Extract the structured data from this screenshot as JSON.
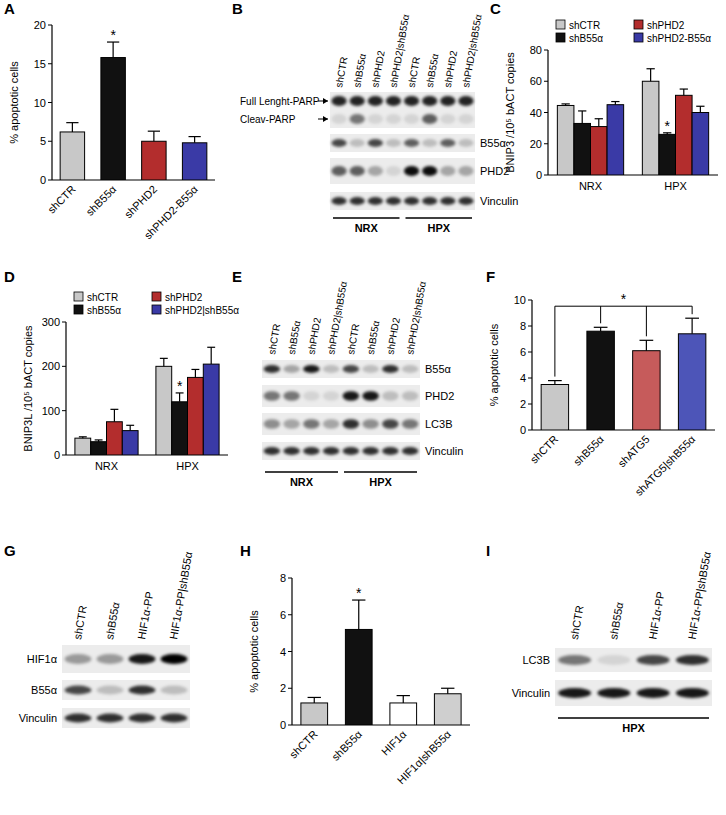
{
  "panel_labels": [
    "A",
    "B",
    "C",
    "D",
    "E",
    "F",
    "G",
    "H",
    "I"
  ],
  "chart_data": [
    {
      "type": "bar",
      "y_label": "% apoptotic cells",
      "categories": [
        "shCTR",
        "shB55α",
        "shPHD2",
        "shPHD2-B55α"
      ],
      "values": [
        6.2,
        15.8,
        5.0,
        4.8
      ],
      "errors": [
        1.2,
        2.0,
        1.3,
        0.8
      ],
      "colors": [
        "#c8c8c8",
        "#111111",
        "#b32d2d",
        "#3a3aa6"
      ],
      "ylim": [
        0,
        20
      ],
      "yticks": [
        0,
        5,
        10,
        15,
        20
      ],
      "annotations": [
        {
          "text": "*",
          "index": 1
        }
      ]
    },
    {
      "type": "bar",
      "y_label": "BNIP3 /10⁵ bACT copies",
      "categories": [
        "NRX",
        "HPX"
      ],
      "series": [
        {
          "name": "shCTR",
          "color": "#c8c8c8",
          "values": [
            44.5,
            60
          ],
          "errors": [
            1,
            8
          ]
        },
        {
          "name": "shB55α",
          "color": "#111111",
          "values": [
            33,
            26
          ],
          "errors": [
            8,
            1
          ]
        },
        {
          "name": "shPHD2",
          "color": "#b32d2d",
          "values": [
            31,
            51
          ],
          "errors": [
            5,
            4
          ]
        },
        {
          "name": "shPHD2-B55α",
          "color": "#3a3aa6",
          "values": [
            45,
            40
          ],
          "errors": [
            2,
            4
          ]
        }
      ],
      "ylim": [
        0,
        80
      ],
      "yticks": [
        0,
        20,
        40,
        60,
        80
      ],
      "legend": "top",
      "annotations": [
        {
          "text": "*",
          "series": 1,
          "index": 1
        }
      ]
    },
    {
      "type": "bar",
      "y_label": "BNIP3L /10⁵ bACT copies",
      "categories": [
        "NRX",
        "HPX"
      ],
      "series": [
        {
          "name": "shCTR",
          "color": "#c8c8c8",
          "values": [
            38,
            200
          ],
          "errors": [
            3,
            18
          ]
        },
        {
          "name": "shB55α",
          "color": "#111111",
          "values": [
            30,
            120
          ],
          "errors": [
            4,
            20
          ]
        },
        {
          "name": "shPHD2",
          "color": "#b32d2d",
          "values": [
            75,
            175
          ],
          "errors": [
            28,
            18
          ]
        },
        {
          "name": "shPHD2|shB55α",
          "color": "#3a3aa6",
          "values": [
            55,
            205
          ],
          "errors": [
            12,
            38
          ]
        }
      ],
      "ylim": [
        0,
        300
      ],
      "yticks": [
        0,
        100,
        200,
        300
      ],
      "legend": "top",
      "annotations": [
        {
          "text": "*",
          "series": 1,
          "index": 1
        }
      ]
    },
    {
      "type": "bar",
      "y_label": "% apoptotic cells",
      "categories": [
        "shCTR",
        "shB55α",
        "shATG5",
        "shATG5|shB55α"
      ],
      "values": [
        3.5,
        7.6,
        6.1,
        7.4
      ],
      "errors": [
        0.3,
        0.3,
        0.8,
        1.2
      ],
      "colors": [
        "#c8c8c8",
        "#111111",
        "#c65b5b",
        "#4d55b8"
      ],
      "ylim": [
        0,
        10
      ],
      "yticks": [
        0,
        2,
        4,
        6,
        8,
        10
      ],
      "annotations": [
        {
          "text": "*",
          "bracket": [
            0,
            1,
            2,
            3
          ]
        }
      ]
    },
    {
      "type": "bar",
      "y_label": "% apoptotic cells",
      "categories": [
        "shCTR",
        "shB55α",
        "HIF1α",
        "HIF1α|shB55α"
      ],
      "values": [
        1.2,
        5.2,
        1.2,
        1.7
      ],
      "errors": [
        0.3,
        1.6,
        0.4,
        0.3
      ],
      "colors": [
        "#c8c8c8",
        "#111111",
        "#ffffff",
        "#cfcfcf"
      ],
      "ylim": [
        0,
        8
      ],
      "yticks": [
        0,
        2,
        4,
        6,
        8
      ],
      "annotations": [
        {
          "text": "*",
          "index": 1
        }
      ]
    }
  ],
  "blots": [
    {
      "lanes": [
        "shCTR",
        "shB55α",
        "shPHD2",
        "shPHD2|shB55α",
        "shCTR",
        "shB55α",
        "shPHD2",
        "shPHD2|shB55α"
      ],
      "rows": [
        {
          "arrows": [
            "Full Lenght-PARP",
            "Cleav-PARP"
          ]
        },
        {
          "label": "B55α"
        },
        {
          "label": "PHD2"
        },
        {
          "label": "Vinculin"
        }
      ],
      "groups": [
        "NRX",
        "HPX"
      ]
    },
    {
      "lanes": [
        "shCTR",
        "shB55α",
        "shPHD2",
        "shPHD2|shB55α",
        "shCTR",
        "shB55α",
        "shPHD2",
        "shPHD2|shB55α"
      ],
      "rows": [
        {
          "label": "B55α"
        },
        {
          "label": "PHD2"
        },
        {
          "label": "LC3B"
        },
        {
          "label": "Vinculin"
        }
      ],
      "groups": [
        "NRX",
        "HPX"
      ]
    },
    {
      "lanes": [
        "shCTR",
        "shB55α",
        "HIF1α-PP",
        "HIF1α-PP|shB55α"
      ],
      "rows": [
        {
          "label": "HIF1α"
        },
        {
          "label": "B55α"
        },
        {
          "label": "Vinculin"
        }
      ]
    },
    {
      "lanes": [
        "shCTR",
        "shB55α",
        "HIF1α-PP",
        "HIF1α-PP|shB55α"
      ],
      "rows": [
        {
          "label": "LC3B"
        },
        {
          "label": "Vinculin"
        }
      ],
      "groups": [
        "HPX"
      ]
    }
  ]
}
